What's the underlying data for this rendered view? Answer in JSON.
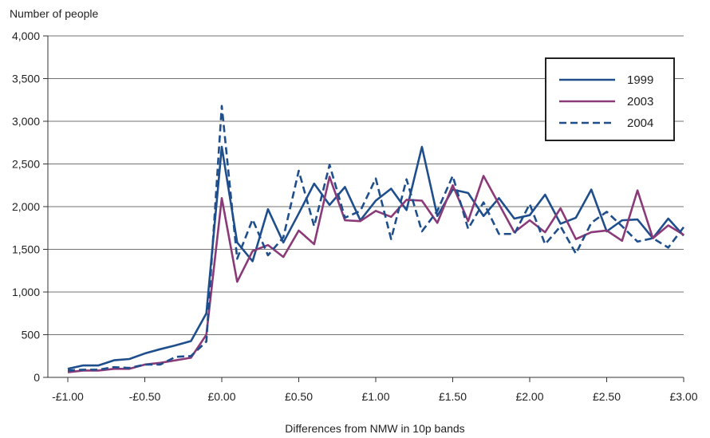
{
  "chart_data": {
    "type": "line",
    "ylabel": "Number of people",
    "xlabel": "Differences from NMW in 10p bands",
    "ylim": [
      0,
      4000
    ],
    "xlim": [
      -1.0,
      3.0
    ],
    "y_ticks": [
      0,
      500,
      1000,
      1500,
      2000,
      2500,
      3000,
      3500,
      4000
    ],
    "y_tick_labels": [
      "0",
      "500",
      "1,000",
      "1,500",
      "2,000",
      "2,500",
      "3,000",
      "3,500",
      "4,000"
    ],
    "x_ticks": [
      -1.0,
      -0.5,
      0.0,
      0.5,
      1.0,
      1.5,
      2.0,
      2.5,
      3.0
    ],
    "x_tick_labels": [
      "-£1.00",
      "-£0.50",
      "£0.00",
      "£0.50",
      "£1.00",
      "£1.50",
      "£2.00",
      "£2.50",
      "£3.00"
    ],
    "x": [
      -1.0,
      -0.9,
      -0.8,
      -0.7,
      -0.6,
      -0.5,
      -0.4,
      -0.3,
      -0.2,
      -0.1,
      0.0,
      0.1,
      0.2,
      0.3,
      0.4,
      0.5,
      0.6,
      0.7,
      0.8,
      0.9,
      1.0,
      1.1,
      1.2,
      1.3,
      1.4,
      1.5,
      1.6,
      1.7,
      1.8,
      1.9,
      2.0,
      2.1,
      2.2,
      2.3,
      2.4,
      2.5,
      2.6,
      2.7,
      2.8,
      2.9,
      3.0
    ],
    "grid": "horizontal",
    "legend_position": "top-right",
    "series": [
      {
        "name": "1999",
        "color": "#1f4e8c",
        "dash": "solid",
        "values": [
          100,
          140,
          140,
          200,
          215,
          280,
          330,
          375,
          425,
          750,
          2700,
          1580,
          1360,
          1970,
          1580,
          1920,
          2270,
          2020,
          2230,
          1840,
          2070,
          2210,
          1960,
          2700,
          1890,
          2200,
          2160,
          1890,
          2100,
          1860,
          1900,
          2140,
          1800,
          1870,
          2200,
          1710,
          1840,
          1850,
          1630,
          1860,
          1660
        ]
      },
      {
        "name": "2003",
        "color": "#8a3a78",
        "dash": "solid",
        "values": [
          60,
          80,
          80,
          100,
          100,
          150,
          170,
          200,
          230,
          500,
          2100,
          1120,
          1480,
          1550,
          1410,
          1720,
          1560,
          2350,
          1840,
          1830,
          1950,
          1880,
          2080,
          2070,
          1810,
          2250,
          1830,
          2360,
          2030,
          1700,
          1840,
          1700,
          1980,
          1620,
          1700,
          1720,
          1600,
          2190,
          1630,
          1780,
          1670
        ]
      },
      {
        "name": "2004",
        "color": "#1f4e8c",
        "dash": "dashed",
        "values": [
          80,
          90,
          90,
          120,
          110,
          150,
          150,
          240,
          250,
          420,
          3180,
          1390,
          1850,
          1430,
          1640,
          2420,
          1770,
          2490,
          1870,
          1950,
          2330,
          1620,
          2320,
          1710,
          1950,
          2360,
          1740,
          2050,
          1680,
          1680,
          2030,
          1560,
          1770,
          1450,
          1810,
          1940,
          1770,
          1590,
          1630,
          1520,
          1760
        ]
      }
    ]
  }
}
